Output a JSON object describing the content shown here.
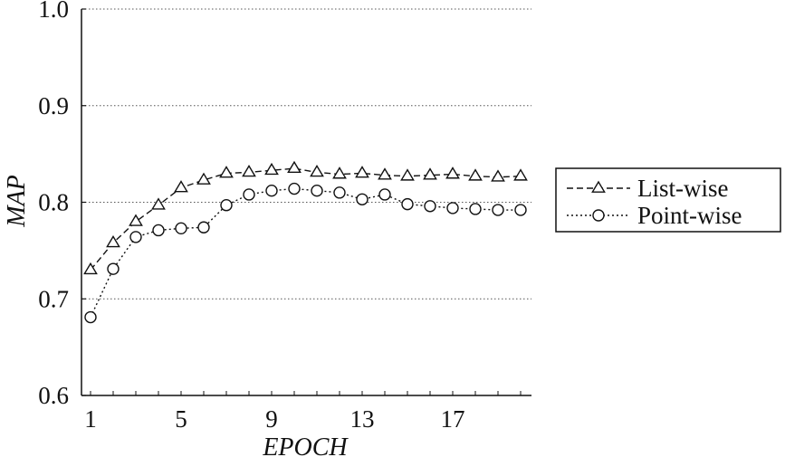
{
  "chart_data": {
    "type": "line",
    "title": "",
    "xlabel": "EPOCH",
    "ylabel": "MAP",
    "x": [
      1,
      2,
      3,
      4,
      5,
      6,
      7,
      8,
      9,
      10,
      11,
      12,
      13,
      14,
      15,
      16,
      17,
      18,
      19,
      20
    ],
    "xlim": [
      1,
      20
    ],
    "ylim": [
      0.6,
      1.0
    ],
    "xticks": [
      "1",
      "5",
      "9",
      "13",
      "17"
    ],
    "yticks": [
      "0.6",
      "0.7",
      "0.8",
      "0.9",
      "1.0"
    ],
    "grid": "horizontal dotted",
    "legend_position": "right",
    "series": [
      {
        "name": "List-wise",
        "marker": "triangle",
        "line_style": "dashed",
        "values": [
          0.73,
          0.758,
          0.78,
          0.797,
          0.815,
          0.823,
          0.83,
          0.831,
          0.833,
          0.835,
          0.831,
          0.829,
          0.83,
          0.828,
          0.827,
          0.828,
          0.829,
          0.827,
          0.826,
          0.827
        ]
      },
      {
        "name": "Point-wise",
        "marker": "circle",
        "line_style": "dotted",
        "values": [
          0.681,
          0.731,
          0.764,
          0.771,
          0.773,
          0.774,
          0.797,
          0.808,
          0.812,
          0.814,
          0.812,
          0.81,
          0.803,
          0.808,
          0.798,
          0.796,
          0.794,
          0.793,
          0.792,
          0.792
        ]
      }
    ]
  }
}
